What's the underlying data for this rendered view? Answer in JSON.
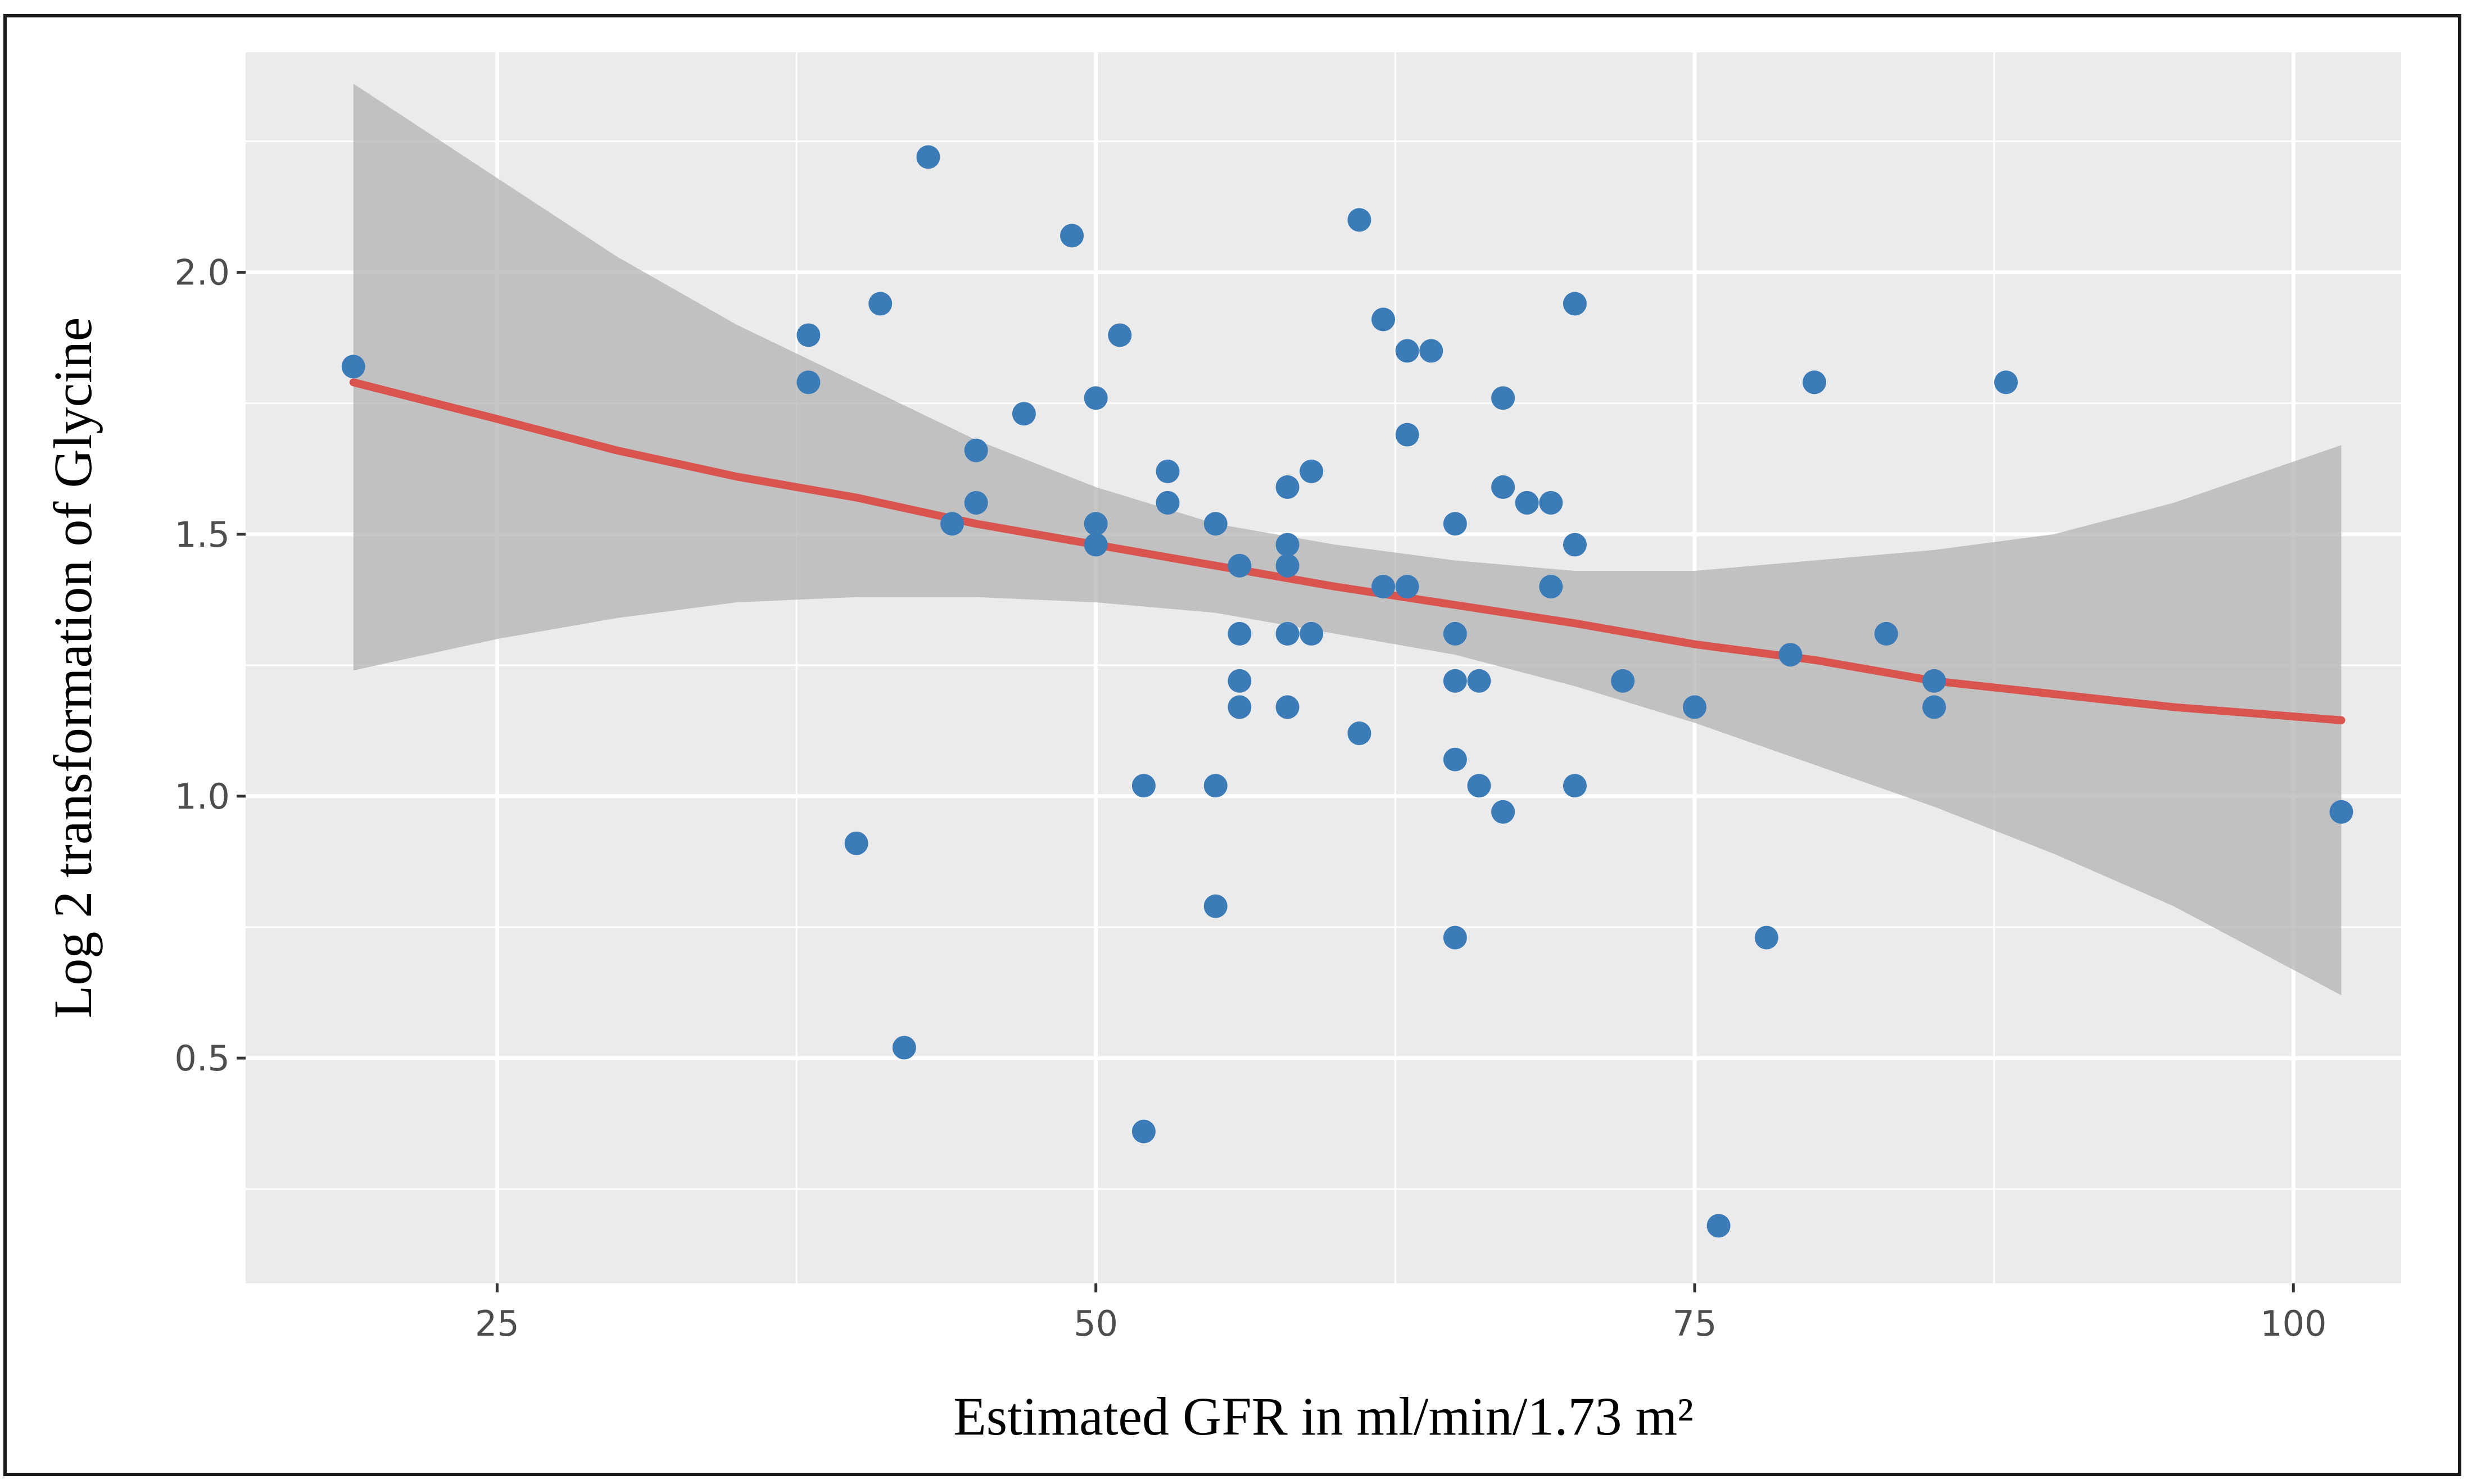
{
  "chart_data": {
    "type": "scatter",
    "title": "",
    "xlabel": "Estimated GFR in ml/min/1.73 m²",
    "ylabel": "Log 2 transformation of Glycine",
    "xlim": [
      14.5,
      104.5
    ],
    "ylim": [
      0.07,
      2.42
    ],
    "x_ticks": [
      25,
      50,
      75,
      100
    ],
    "x_tick_labels": [
      "25",
      "50",
      "75",
      "100"
    ],
    "y_ticks": [
      0.5,
      1.0,
      1.5,
      2.0
    ],
    "y_tick_labels": [
      "0.5",
      "1.0",
      "1.5",
      "2.0"
    ],
    "grid": true,
    "colors": {
      "panel": "#ebebeb",
      "gridline": "#ffffff",
      "points": "#3b7bb8",
      "fit_line": "#d9534f",
      "ribbon": "#b3b3b3"
    },
    "points": [
      {
        "x": 19,
        "y": 1.82
      },
      {
        "x": 38,
        "y": 1.88
      },
      {
        "x": 38,
        "y": 1.79
      },
      {
        "x": 40,
        "y": 0.91
      },
      {
        "x": 41,
        "y": 1.94
      },
      {
        "x": 42,
        "y": 0.52
      },
      {
        "x": 43,
        "y": 2.22
      },
      {
        "x": 44,
        "y": 1.52
      },
      {
        "x": 45,
        "y": 1.66
      },
      {
        "x": 45,
        "y": 1.56
      },
      {
        "x": 47,
        "y": 1.73
      },
      {
        "x": 49,
        "y": 2.07
      },
      {
        "x": 50,
        "y": 1.76
      },
      {
        "x": 50,
        "y": 1.52
      },
      {
        "x": 50,
        "y": 1.48
      },
      {
        "x": 51,
        "y": 1.88
      },
      {
        "x": 52,
        "y": 1.02
      },
      {
        "x": 52,
        "y": 0.36
      },
      {
        "x": 53,
        "y": 1.62
      },
      {
        "x": 53,
        "y": 1.56
      },
      {
        "x": 55,
        "y": 1.52
      },
      {
        "x": 55,
        "y": 1.02
      },
      {
        "x": 55,
        "y": 0.79
      },
      {
        "x": 56,
        "y": 1.44
      },
      {
        "x": 56,
        "y": 1.31
      },
      {
        "x": 56,
        "y": 1.22
      },
      {
        "x": 56,
        "y": 1.17
      },
      {
        "x": 58,
        "y": 1.59
      },
      {
        "x": 58,
        "y": 1.48
      },
      {
        "x": 58,
        "y": 1.44
      },
      {
        "x": 58,
        "y": 1.31
      },
      {
        "x": 58,
        "y": 1.17
      },
      {
        "x": 59,
        "y": 1.62
      },
      {
        "x": 59,
        "y": 1.31
      },
      {
        "x": 61,
        "y": 2.1
      },
      {
        "x": 61,
        "y": 1.12
      },
      {
        "x": 62,
        "y": 1.91
      },
      {
        "x": 62,
        "y": 1.4
      },
      {
        "x": 63,
        "y": 1.85
      },
      {
        "x": 63,
        "y": 1.69
      },
      {
        "x": 63,
        "y": 1.4
      },
      {
        "x": 64,
        "y": 1.85
      },
      {
        "x": 65,
        "y": 1.52
      },
      {
        "x": 65,
        "y": 1.31
      },
      {
        "x": 65,
        "y": 1.22
      },
      {
        "x": 65,
        "y": 1.07
      },
      {
        "x": 65,
        "y": 0.73
      },
      {
        "x": 66,
        "y": 1.22
      },
      {
        "x": 66,
        "y": 1.02
      },
      {
        "x": 67,
        "y": 1.76
      },
      {
        "x": 67,
        "y": 1.59
      },
      {
        "x": 67,
        "y": 0.97
      },
      {
        "x": 68,
        "y": 1.56
      },
      {
        "x": 69,
        "y": 1.56
      },
      {
        "x": 69,
        "y": 1.4
      },
      {
        "x": 70,
        "y": 1.94
      },
      {
        "x": 70,
        "y": 1.48
      },
      {
        "x": 70,
        "y": 1.02
      },
      {
        "x": 72,
        "y": 1.22
      },
      {
        "x": 75,
        "y": 1.17
      },
      {
        "x": 76,
        "y": 0.18
      },
      {
        "x": 78,
        "y": 0.73
      },
      {
        "x": 79,
        "y": 1.27
      },
      {
        "x": 80,
        "y": 1.79
      },
      {
        "x": 83,
        "y": 1.31
      },
      {
        "x": 85,
        "y": 1.22
      },
      {
        "x": 85,
        "y": 1.17
      },
      {
        "x": 88,
        "y": 1.79
      },
      {
        "x": 102,
        "y": 0.97
      }
    ],
    "fit_line": [
      {
        "x": 19,
        "y": 1.79
      },
      {
        "x": 25,
        "y": 1.72
      },
      {
        "x": 30,
        "y": 1.66
      },
      {
        "x": 35,
        "y": 1.61
      },
      {
        "x": 40,
        "y": 1.57
      },
      {
        "x": 45,
        "y": 1.52
      },
      {
        "x": 50,
        "y": 1.48
      },
      {
        "x": 55,
        "y": 1.44
      },
      {
        "x": 60,
        "y": 1.4
      },
      {
        "x": 65,
        "y": 1.365
      },
      {
        "x": 70,
        "y": 1.33
      },
      {
        "x": 75,
        "y": 1.29
      },
      {
        "x": 80,
        "y": 1.26
      },
      {
        "x": 85,
        "y": 1.22
      },
      {
        "x": 90,
        "y": 1.195
      },
      {
        "x": 95,
        "y": 1.17
      },
      {
        "x": 102,
        "y": 1.145
      }
    ],
    "confidence_band": [
      {
        "x": 19,
        "lower": 1.24,
        "upper": 2.36
      },
      {
        "x": 25,
        "lower": 1.3,
        "upper": 2.18
      },
      {
        "x": 30,
        "lower": 1.34,
        "upper": 2.03
      },
      {
        "x": 35,
        "lower": 1.37,
        "upper": 1.9
      },
      {
        "x": 40,
        "lower": 1.38,
        "upper": 1.79
      },
      {
        "x": 45,
        "lower": 1.38,
        "upper": 1.68
      },
      {
        "x": 50,
        "lower": 1.37,
        "upper": 1.59
      },
      {
        "x": 55,
        "lower": 1.35,
        "upper": 1.52
      },
      {
        "x": 60,
        "lower": 1.31,
        "upper": 1.48
      },
      {
        "x": 65,
        "lower": 1.27,
        "upper": 1.45
      },
      {
        "x": 70,
        "lower": 1.21,
        "upper": 1.43
      },
      {
        "x": 75,
        "lower": 1.14,
        "upper": 1.43
      },
      {
        "x": 80,
        "lower": 1.06,
        "upper": 1.45
      },
      {
        "x": 85,
        "lower": 0.98,
        "upper": 1.47
      },
      {
        "x": 90,
        "lower": 0.89,
        "upper": 1.5
      },
      {
        "x": 95,
        "lower": 0.79,
        "upper": 1.56
      },
      {
        "x": 102,
        "lower": 0.62,
        "upper": 1.67
      }
    ]
  }
}
